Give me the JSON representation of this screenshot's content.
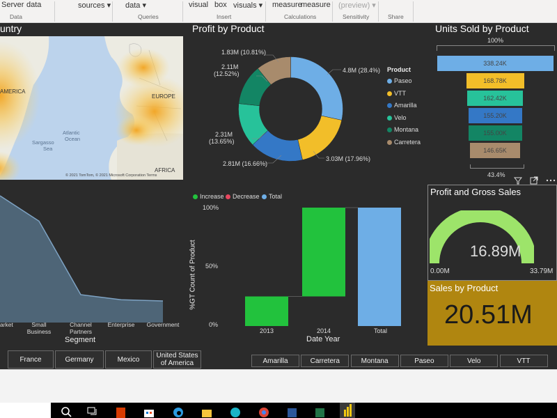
{
  "ribbon": {
    "items": [
      "Server",
      "data",
      "sources",
      "data",
      "visual",
      "box",
      "visuals",
      "measure",
      "measure",
      "(preview)"
    ],
    "groups": [
      "Data",
      "Queries",
      "Insert",
      "Calculations",
      "Sensitivity",
      "Share"
    ]
  },
  "map": {
    "title": "untry",
    "labels": [
      "AMERICA",
      "EUROPE",
      "Atlantic",
      "Ocean",
      "Sargasso",
      "Sea",
      "AFRICA"
    ],
    "attribution": "© 2021 TomTom, © 2021 Microsoft Corporation  Terms"
  },
  "profit_by_product": {
    "title": "Profit by Product",
    "legend_title": "Product",
    "labels": [
      "1.83M (10.81%)",
      "2.11M",
      "(12.52%)",
      "4.8M (28.4%)",
      "2.31M",
      "(13.65%)",
      "2.81M (16.66%)",
      "3.03M (17.96%)"
    ]
  },
  "units_sold": {
    "title": "Units Sold by Product",
    "top_pct": "100%",
    "bottom_pct": "43.4%",
    "toolbar_icons": [
      "filter-icon",
      "focus-mode-icon",
      "more-options-icon"
    ]
  },
  "segment_chart": {
    "categories": [
      "arket",
      "Small Business",
      "Channel Partners",
      "Enterprise",
      "Government"
    ],
    "xlabel": "Segment"
  },
  "waterfall": {
    "legend": [
      "Increase",
      "Decrease",
      "Total"
    ],
    "ylabel": "%GT Count of Product",
    "y_ticks": [
      "100%",
      "50%",
      "0%"
    ],
    "categories": [
      "2013",
      "2014",
      "Total"
    ],
    "xlabel": "Date Year"
  },
  "gauge": {
    "title": "Profit and Gross Sales",
    "value_label": "16.89M",
    "min_label": "0.00M",
    "max_label": "33.79M"
  },
  "sales_card": {
    "title": "Sales by Product",
    "value": "20.51M"
  },
  "country_slicer": [
    "France",
    "Germany",
    "Mexico",
    "United States of America"
  ],
  "product_slicer": [
    "Amarilla",
    "Carretera",
    "Montana",
    "Paseo",
    "Velo",
    "VTT"
  ],
  "colors": {
    "paseo": "#6eaee6",
    "vtt": "#f2be29",
    "amarilla": "#3478c6",
    "velo": "#27c29a",
    "montana": "#138564",
    "carretera": "#a88b6c",
    "increase": "#22c23d",
    "decrease": "#e8475f",
    "total": "#6eaee6",
    "gauge": "#9de46a",
    "card": "#b08610",
    "area": "#4e6577"
  },
  "chart_data": [
    {
      "type": "pie",
      "title": "Profit by Product",
      "categories": [
        "Paseo",
        "VTT",
        "Amarilla",
        "Velo",
        "Montana",
        "Carretera"
      ],
      "values": [
        4.8,
        3.03,
        2.81,
        2.31,
        2.11,
        1.83
      ],
      "percentages": [
        28.4,
        17.96,
        16.66,
        13.65,
        12.52,
        10.81
      ],
      "legend_placement": "right"
    },
    {
      "type": "bar",
      "title": "Units Sold by Product",
      "categories": [
        "Paseo",
        "VTT",
        "Velo",
        "Amarilla",
        "Montana",
        "Carretera"
      ],
      "values": [
        338.24,
        168.78,
        162.42,
        155.2,
        155.0,
        146.65
      ],
      "value_labels": [
        "338.24K",
        "168.78K",
        "162.42K",
        "155.20K",
        "155.00K",
        "146.65K"
      ]
    },
    {
      "type": "area",
      "xlabel": "Segment",
      "categories": [
        "arket",
        "Small Business",
        "Channel Partners",
        "Enterprise",
        "Government"
      ],
      "values": [
        100,
        80,
        22,
        18,
        17
      ]
    },
    {
      "type": "bar",
      "xlabel": "Date Year",
      "ylabel": "%GT Count of Product",
      "categories": [
        "2013",
        "2014",
        "Total"
      ],
      "series": [
        {
          "name": "Increase",
          "values": [
            25,
            75,
            0
          ]
        },
        {
          "name": "Total",
          "values": [
            0,
            0,
            100
          ]
        }
      ],
      "ylim": [
        0,
        100
      ]
    }
  ]
}
